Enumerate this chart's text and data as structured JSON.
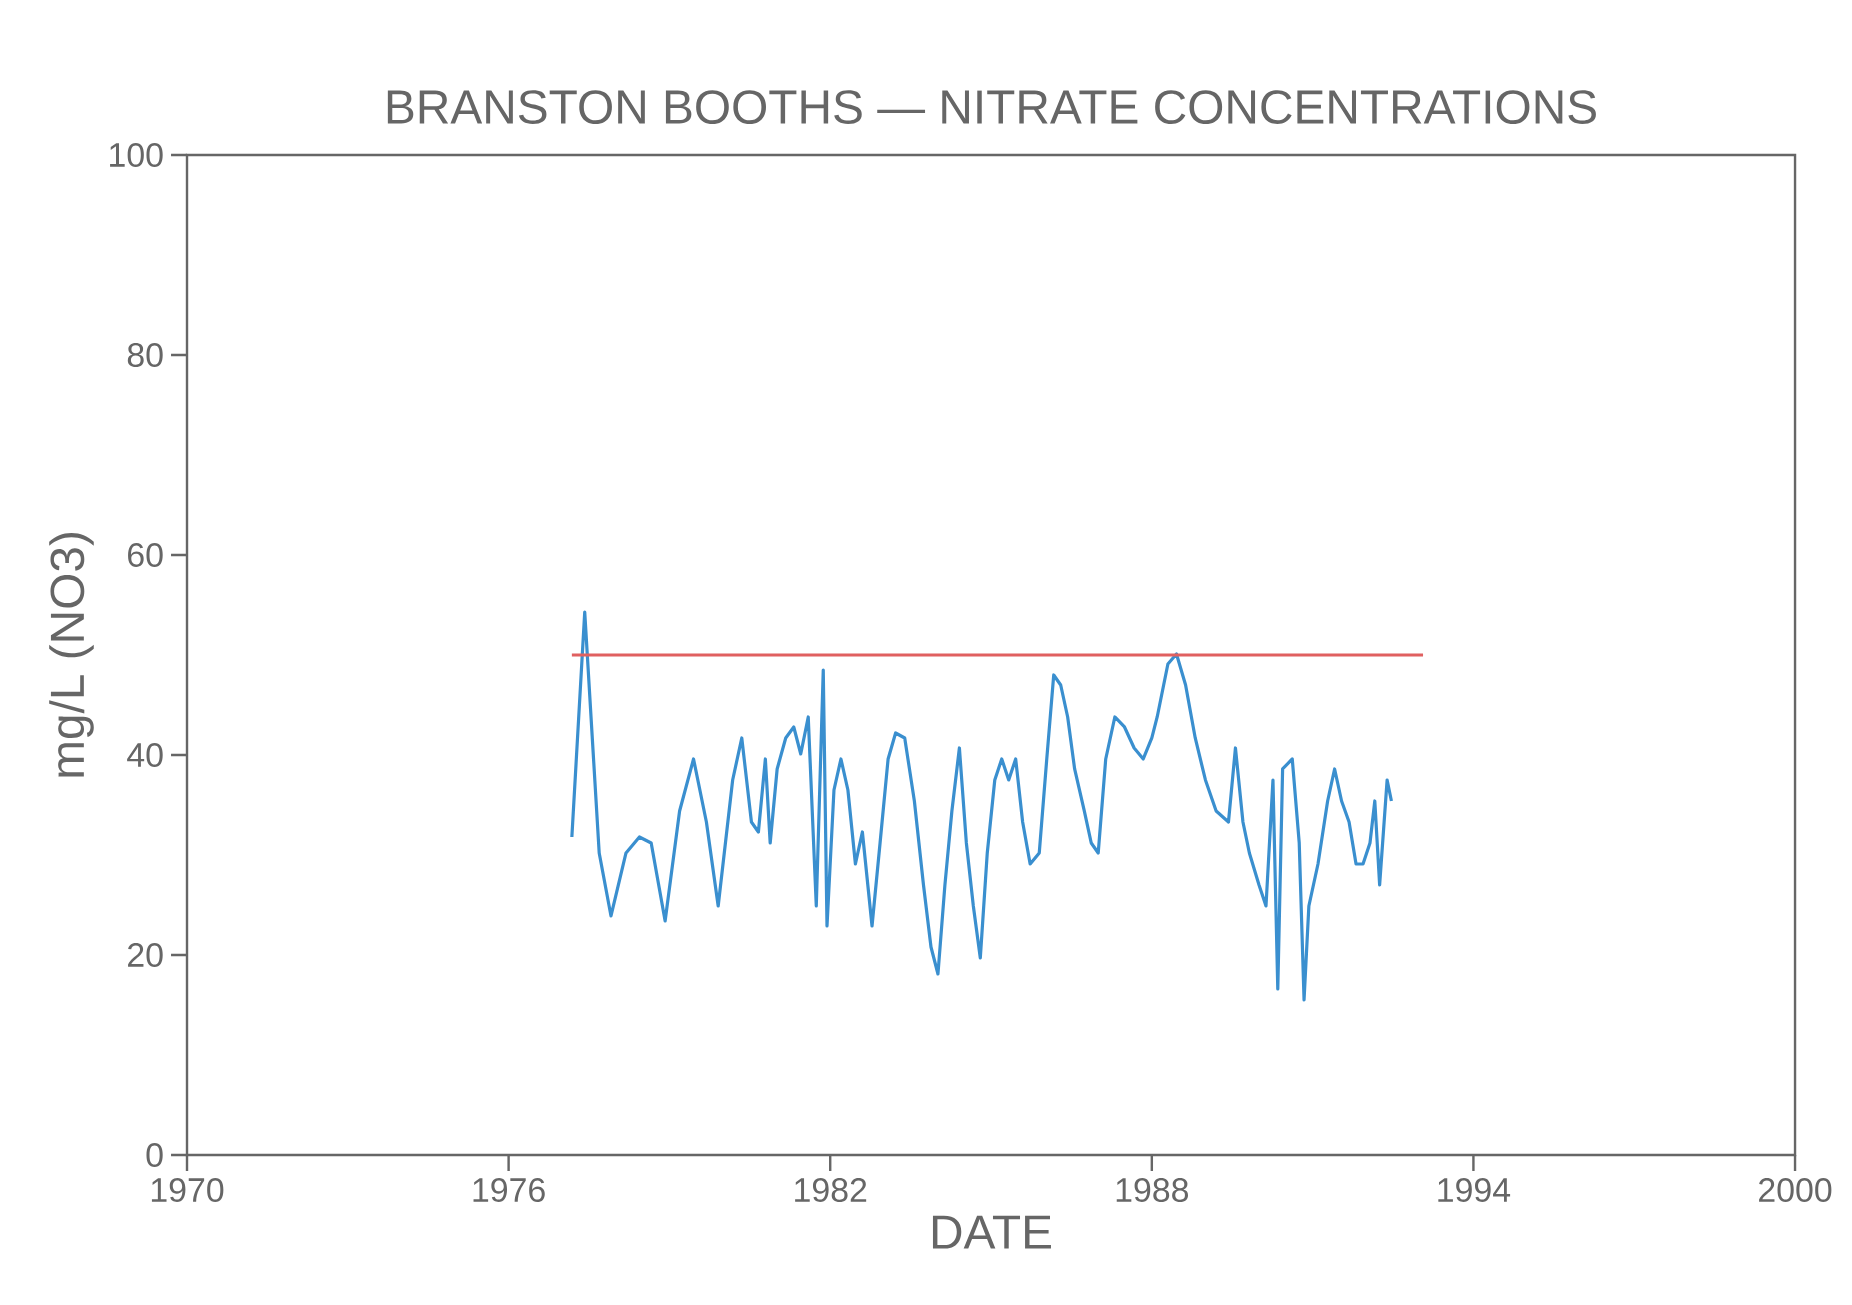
{
  "chart_data": {
    "type": "line",
    "title": "BRANSTON BOOTHS — NITRATE CONCENTRATIONS",
    "xlabel": "DATE",
    "ylabel": "mg/L (NO3)",
    "xlim": [
      1970,
      2000
    ],
    "xticks": [
      1970,
      1976,
      1982,
      1988,
      1994,
      2000
    ],
    "ylim": [
      0,
      100
    ],
    "yticks": [
      0,
      20,
      40,
      60,
      80,
      100
    ],
    "grid": false,
    "series": [
      {
        "color": "#3a8fcf",
        "x": [
          1977.18,
          1977.42,
          1977.69,
          1977.91,
          1978.19,
          1978.44,
          1978.66,
          1978.92,
          1979.19,
          1979.45,
          1979.69,
          1979.91,
          1980.18,
          1980.35,
          1980.53,
          1980.66,
          1980.79,
          1980.88,
          1981.01,
          1981.17,
          1981.32,
          1981.45,
          1981.59,
          1981.74,
          1981.87,
          1981.94,
          1982.07,
          1982.2,
          1982.33,
          1982.47,
          1982.6,
          1982.78,
          1982.93,
          1983.08,
          1983.22,
          1983.39,
          1983.57,
          1983.74,
          1983.88,
          1984.01,
          1984.14,
          1984.27,
          1984.41,
          1984.54,
          1984.67,
          1984.8,
          1984.93,
          1985.07,
          1985.2,
          1985.33,
          1985.46,
          1985.59,
          1985.73,
          1985.9,
          1986.04,
          1986.17,
          1986.3,
          1986.43,
          1986.56,
          1986.74,
          1986.87,
          1987.0,
          1987.14,
          1987.31,
          1987.49,
          1987.67,
          1987.84,
          1988.0,
          1988.1,
          1988.3,
          1988.46,
          1988.63,
          1988.81,
          1989.0,
          1989.2,
          1989.43,
          1989.56,
          1989.7,
          1989.82,
          1990.0,
          1990.13,
          1990.26,
          1990.35,
          1990.44,
          1990.62,
          1990.75,
          1990.84,
          1990.93,
          1991.1,
          1991.28,
          1991.41,
          1991.54,
          1991.68,
          1991.81,
          1991.94,
          1992.07,
          1992.16,
          1992.25,
          1992.39,
          1992.47
        ],
        "values": [
          31.8,
          54.3,
          30.2,
          23.9,
          30.2,
          31.8,
          31.2,
          23.4,
          34.4,
          39.6,
          33.3,
          24.9,
          37.5,
          41.7,
          33.3,
          32.3,
          39.6,
          31.2,
          38.6,
          41.7,
          42.8,
          40.1,
          43.8,
          24.9,
          48.5,
          22.9,
          36.5,
          39.6,
          36.5,
          29.1,
          32.3,
          22.9,
          31.2,
          39.6,
          42.2,
          41.7,
          35.4,
          27.0,
          20.8,
          18.1,
          27.0,
          34.4,
          40.7,
          31.2,
          24.9,
          19.7,
          30.2,
          37.5,
          39.6,
          37.5,
          39.6,
          33.3,
          29.1,
          30.2,
          39.6,
          48.0,
          47.0,
          43.8,
          38.6,
          34.4,
          31.2,
          30.2,
          39.6,
          43.8,
          42.8,
          40.7,
          39.6,
          41.7,
          43.8,
          49.1,
          50.1,
          47.0,
          41.7,
          37.5,
          34.4,
          33.3,
          40.7,
          33.3,
          30.2,
          27.0,
          24.9,
          37.5,
          16.6,
          38.6,
          39.6,
          31.2,
          15.5,
          24.9,
          29.1,
          35.4,
          38.6,
          35.4,
          33.3,
          29.1,
          29.1,
          31.2,
          35.4,
          27.0,
          37.5,
          35.4
        ]
      },
      {
        "color": "#e06060",
        "x": [
          1977.18,
          1993.06
        ],
        "values": [
          50,
          50
        ]
      }
    ]
  }
}
